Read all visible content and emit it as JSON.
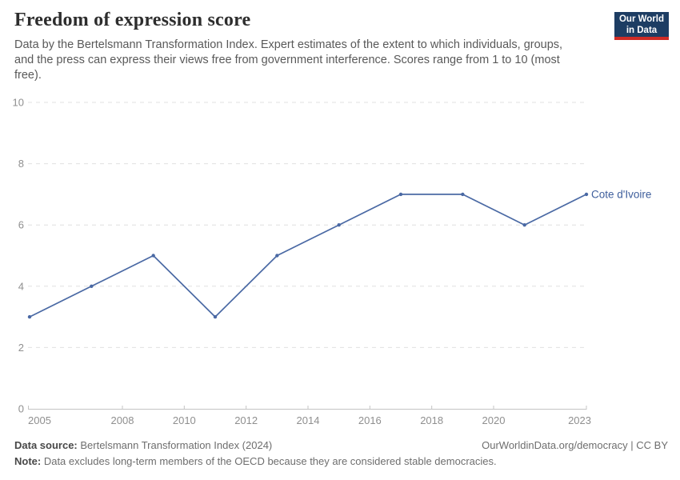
{
  "header": {
    "title": "Freedom of expression score",
    "subtitle": "Data by the Bertelsmann Transformation Index. Expert estimates of the extent to which individuals, groups, and the press can express their views free from government interference. Scores range from 1 to 10 (most free).",
    "logo": {
      "line1": "Our World",
      "line2": "in Data"
    }
  },
  "chart_data": {
    "type": "line",
    "title": "Freedom of expression score",
    "series": [
      {
        "name": "Cote d'Ivoire",
        "x": [
          2005,
          2007,
          2009,
          2011,
          2013,
          2015,
          2017,
          2019,
          2021,
          2023
        ],
        "values": [
          3,
          4,
          5,
          3,
          5,
          6,
          7,
          7,
          6,
          7
        ]
      }
    ],
    "x_ticks": [
      2005,
      2008,
      2010,
      2012,
      2014,
      2016,
      2018,
      2020,
      2023
    ],
    "y_ticks": [
      0,
      2,
      4,
      6,
      8,
      10
    ],
    "xlim": [
      2005,
      2023
    ],
    "ylim": [
      0,
      10
    ],
    "grid": "horizontal-dashed",
    "legend_position": "end-of-line-label",
    "colors": {
      "line": "#4a69a4",
      "entity_label": "#3e5e9c",
      "axis_text": "#8f8f8f",
      "gridline": "#e0e0e0",
      "axis_line": "#c4c4c4"
    }
  },
  "footer": {
    "source_label": "Data source:",
    "source_text": " Bertelsmann Transformation Index (2024)",
    "rights": "OurWorldinData.org/democracy | CC BY",
    "note_label": "Note:",
    "note_text": " Data excludes long-term members of the OECD because they are considered stable democracies."
  }
}
